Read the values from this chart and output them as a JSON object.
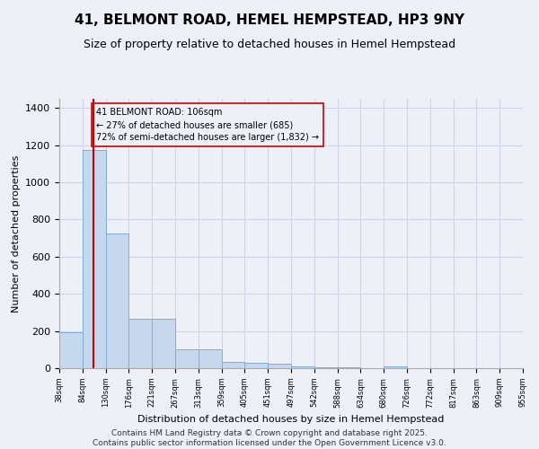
{
  "title": "41, BELMONT ROAD, HEMEL HEMPSTEAD, HP3 9NY",
  "subtitle": "Size of property relative to detached houses in Hemel Hempstead",
  "xlabel": "Distribution of detached houses by size in Hemel Hempstead",
  "ylabel": "Number of detached properties",
  "bar_values": [
    193,
    1175,
    725,
    265,
    265,
    103,
    103,
    35,
    27,
    22,
    10,
    5,
    3,
    2,
    12,
    2,
    1,
    1,
    1,
    1
  ],
  "categories": [
    "38sqm",
    "84sqm",
    "130sqm",
    "176sqm",
    "221sqm",
    "267sqm",
    "313sqm",
    "359sqm",
    "405sqm",
    "451sqm",
    "497sqm",
    "542sqm",
    "588sqm",
    "634sqm",
    "680sqm",
    "726sqm",
    "772sqm",
    "817sqm",
    "863sqm",
    "909sqm",
    "955sqm"
  ],
  "bar_color": "#c5d8ee",
  "bar_edge_color": "#7bafd4",
  "grid_color": "#d0d4e8",
  "bg_color": "#eef0f8",
  "property_line_color": "#cc0000",
  "annotation_text": "41 BELMONT ROAD: 106sqm\n← 27% of detached houses are smaller (685)\n72% of semi-detached houses are larger (1,832) →",
  "annotation_box_color": "#cc0000",
  "ylim": [
    0,
    1450
  ],
  "yticks": [
    0,
    200,
    400,
    600,
    800,
    1000,
    1200,
    1400
  ],
  "footer": "Contains HM Land Registry data © Crown copyright and database right 2025.\nContains public sector information licensed under the Open Government Licence v3.0.",
  "footer_fontsize": 6.5
}
